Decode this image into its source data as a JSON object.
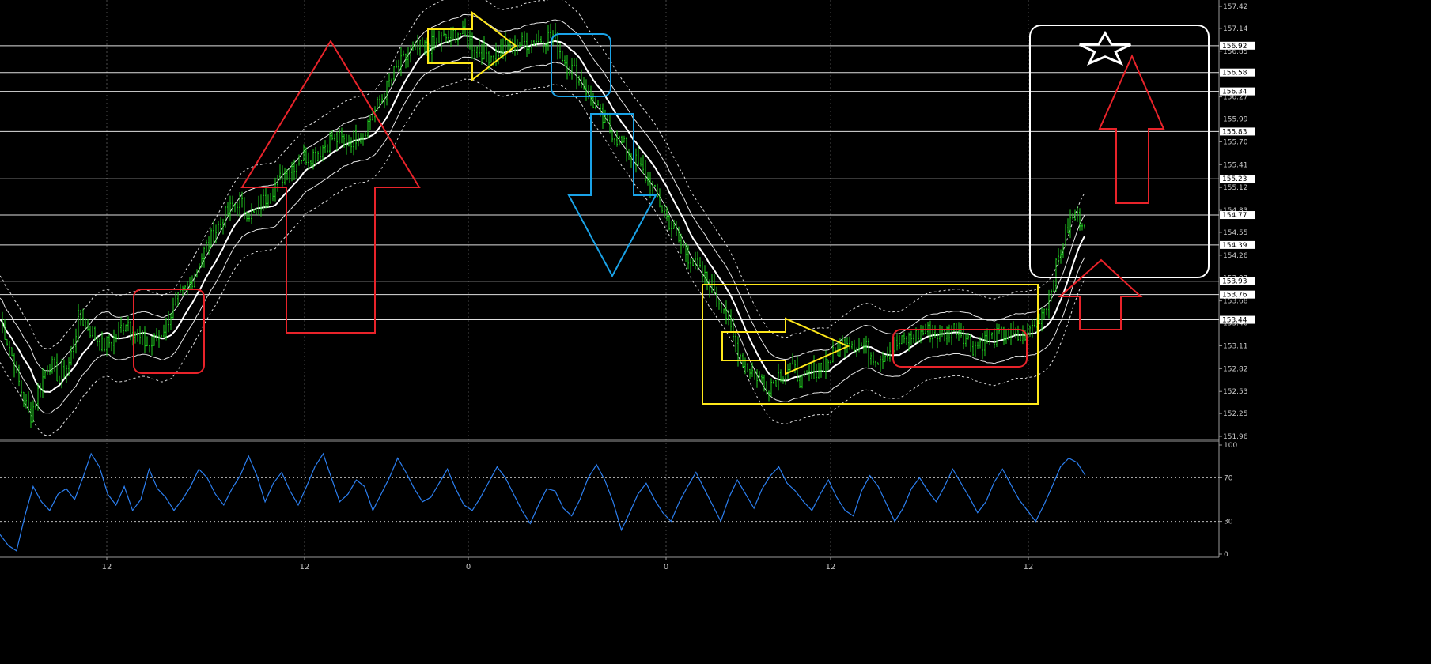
{
  "chart_data": [
    {
      "type": "line",
      "panel": "price",
      "title": "",
      "xlabel": "",
      "ylabel": "",
      "ylim": [
        151.96,
        157.42
      ],
      "grid": true,
      "y_ticks": [
        "157.42",
        "157.14",
        "156.85",
        "156.56",
        "156.27",
        "155.99",
        "155.70",
        "155.41",
        "155.12",
        "154.83",
        "154.55",
        "154.26",
        "153.97",
        "153.68",
        "153.40",
        "153.11",
        "152.82",
        "152.53",
        "152.25",
        "151.96"
      ],
      "x_ticks": [
        "12",
        "12",
        "0",
        "0",
        "12",
        "12"
      ],
      "hlevels": [
        156.92,
        156.58,
        156.34,
        155.83,
        155.23,
        154.77,
        154.39,
        153.93,
        153.76,
        153.44
      ],
      "hlevel_labels": [
        "156.92",
        "156.58",
        "156.34",
        "155.83",
        "155.23",
        "154.77",
        "154.39",
        "153.93",
        "153.76",
        "153.44"
      ],
      "price_path": [
        [
          0,
          153.45
        ],
        [
          12,
          153.1
        ],
        [
          25,
          152.6
        ],
        [
          38,
          152.2
        ],
        [
          50,
          152.6
        ],
        [
          62,
          152.9
        ],
        [
          75,
          152.7
        ],
        [
          88,
          152.9
        ],
        [
          100,
          153.5
        ],
        [
          115,
          153.3
        ],
        [
          130,
          153.1
        ],
        [
          145,
          153.2
        ],
        [
          160,
          153.45
        ],
        [
          175,
          153.2
        ],
        [
          190,
          153.1
        ],
        [
          205,
          153.3
        ],
        [
          220,
          153.6
        ],
        [
          240,
          153.9
        ],
        [
          260,
          154.35
        ],
        [
          280,
          154.7
        ],
        [
          300,
          154.95
        ],
        [
          320,
          154.75
        ],
        [
          340,
          155.05
        ],
        [
          360,
          155.3
        ],
        [
          380,
          155.5
        ],
        [
          400,
          155.55
        ],
        [
          420,
          155.75
        ],
        [
          440,
          155.7
        ],
        [
          460,
          155.85
        ],
        [
          480,
          156.2
        ],
        [
          500,
          156.6
        ],
        [
          520,
          156.85
        ],
        [
          540,
          156.9
        ],
        [
          560,
          157.0
        ],
        [
          580,
          157.1
        ],
        [
          600,
          156.9
        ],
        [
          620,
          156.8
        ],
        [
          640,
          156.9
        ],
        [
          660,
          156.95
        ],
        [
          680,
          157.0
        ],
        [
          700,
          157.05
        ],
        [
          715,
          156.7
        ],
        [
          730,
          156.55
        ],
        [
          745,
          156.3
        ],
        [
          760,
          156.0
        ],
        [
          780,
          155.75
        ],
        [
          800,
          155.5
        ],
        [
          820,
          155.2
        ],
        [
          840,
          154.8
        ],
        [
          860,
          154.4
        ],
        [
          880,
          154.1
        ],
        [
          900,
          153.85
        ],
        [
          915,
          153.6
        ],
        [
          925,
          153.25
        ],
        [
          940,
          152.9
        ],
        [
          955,
          152.75
        ],
        [
          970,
          152.6
        ],
        [
          985,
          152.75
        ],
        [
          1000,
          152.85
        ],
        [
          1015,
          152.65
        ],
        [
          1030,
          152.8
        ],
        [
          1050,
          152.95
        ],
        [
          1070,
          153.2
        ],
        [
          1090,
          153.1
        ],
        [
          1110,
          152.95
        ],
        [
          1130,
          153.1
        ],
        [
          1150,
          153.2
        ],
        [
          1170,
          153.3
        ],
        [
          1190,
          153.25
        ],
        [
          1210,
          153.35
        ],
        [
          1230,
          153.1
        ],
        [
          1250,
          153.2
        ],
        [
          1270,
          153.25
        ],
        [
          1290,
          153.2
        ],
        [
          1310,
          153.4
        ],
        [
          1325,
          153.7
        ],
        [
          1340,
          154.3
        ],
        [
          1355,
          154.75
        ],
        [
          1372,
          154.7
        ]
      ]
    },
    {
      "type": "line",
      "panel": "oscillator",
      "title": "",
      "ylim": [
        0,
        100
      ],
      "y_ticks": [
        "100",
        "70",
        "30",
        "0"
      ],
      "levels": [
        70,
        30
      ],
      "x_ticks": [
        "12",
        "12",
        "0",
        "0",
        "12",
        "12"
      ],
      "series": [
        {
          "values": [
            18,
            8,
            3,
            35,
            62,
            48,
            40,
            55,
            60,
            50,
            70,
            92,
            80,
            55,
            45,
            62,
            40,
            50,
            78,
            60,
            52,
            40,
            50,
            62,
            78,
            70,
            55,
            45,
            60,
            72,
            90,
            72,
            48,
            65,
            75,
            58,
            45,
            62,
            80,
            92,
            70,
            48,
            55,
            68,
            62,
            40,
            55,
            70,
            88,
            75,
            60,
            48,
            52,
            65,
            78,
            60,
            45,
            40,
            52,
            66,
            80,
            70,
            55,
            40,
            28,
            45,
            60,
            58,
            42,
            35,
            50,
            70,
            82,
            68,
            48,
            22,
            38,
            55,
            65,
            50,
            38,
            30,
            48,
            62,
            75,
            60,
            45,
            30,
            52,
            68,
            55,
            42,
            60,
            72,
            80,
            65,
            58,
            48,
            40,
            55,
            68,
            52,
            40,
            35,
            58,
            72,
            62,
            46,
            30,
            42,
            60,
            70,
            58,
            48,
            62,
            78,
            65,
            52,
            38,
            48,
            66,
            78,
            64,
            50,
            40,
            30,
            45,
            62,
            80,
            88,
            84,
            72
          ]
        }
      ]
    }
  ],
  "annotations": [
    {
      "kind": "arrow-up",
      "color": "#e8232a"
    },
    {
      "kind": "arrow-right",
      "color": "#ffe81a"
    },
    {
      "kind": "arrow-down",
      "color": "#1aa3e8"
    },
    {
      "kind": "box",
      "color": "#e8232a"
    },
    {
      "kind": "box",
      "color": "#1aa3e8"
    },
    {
      "kind": "range-box",
      "color": "#ffe81a"
    },
    {
      "kind": "arrow-right",
      "color": "#ffe81a"
    },
    {
      "kind": "box",
      "color": "#e8232a"
    },
    {
      "kind": "target-box",
      "color": "#ffffff"
    },
    {
      "kind": "star",
      "color": "#ffffff"
    },
    {
      "kind": "arrow-up",
      "color": "#e8232a"
    },
    {
      "kind": "arrow-up",
      "color": "#e8232a"
    }
  ],
  "colors": {
    "background": "#000000",
    "candles": "#1fd11f",
    "ma": "#ffffff",
    "oscillator": "#2c7ff0",
    "grid": "#3a3a3a"
  }
}
